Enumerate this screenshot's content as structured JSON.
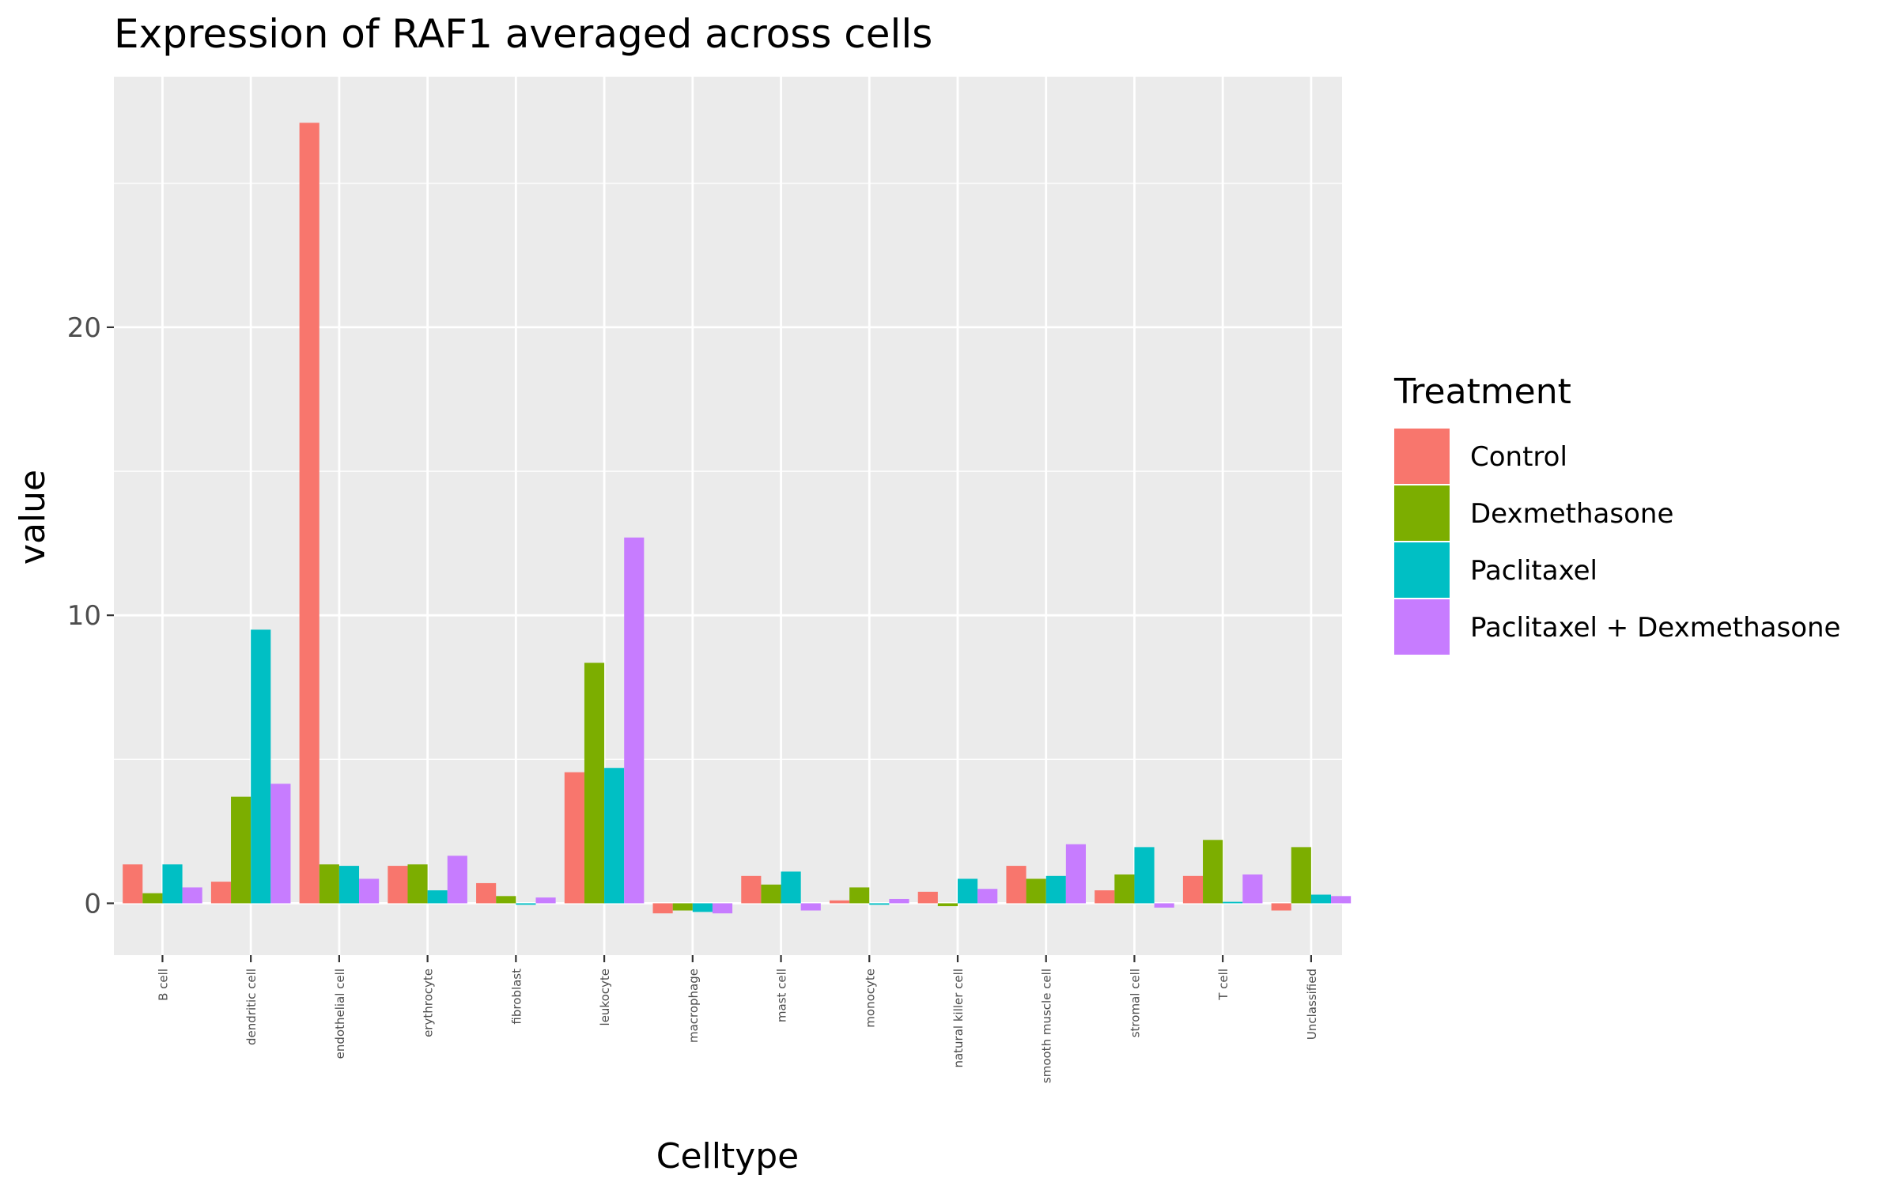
{
  "chart_data": {
    "type": "bar",
    "title": "Expression of RAF1 averaged across cells",
    "xlabel": "Celltype",
    "ylabel": "value",
    "ylim": [
      -1.8,
      28.7
    ],
    "yticks": [
      0,
      10,
      20
    ],
    "grid": true,
    "legend_position": "right",
    "legend_title": "Treatment",
    "categories": [
      "B cell",
      "dendritic cell",
      "endothelial cell",
      "erythrocyte",
      "fibroblast",
      "leukocyte",
      "macrophage",
      "mast cell",
      "monocyte",
      "natural killer cell",
      "smooth muscle cell",
      "stromal cell",
      "T cell",
      "Unclassified"
    ],
    "series": [
      {
        "name": "Control",
        "color": "#F8766D",
        "values": [
          1.35,
          0.75,
          27.1,
          1.3,
          0.7,
          4.55,
          -0.35,
          0.95,
          0.1,
          0.4,
          1.3,
          0.45,
          0.95,
          -0.25
        ]
      },
      {
        "name": "Dexmethasone",
        "color": "#7CAE00",
        "values": [
          0.35,
          3.7,
          1.35,
          1.35,
          0.25,
          8.35,
          -0.25,
          0.65,
          0.55,
          -0.1,
          0.85,
          1.0,
          2.2,
          1.95
        ]
      },
      {
        "name": "Paclitaxel",
        "color": "#00BFC4",
        "values": [
          1.35,
          9.5,
          1.3,
          0.45,
          -0.05,
          4.7,
          -0.3,
          1.1,
          -0.05,
          0.85,
          0.95,
          1.95,
          0.05,
          0.3
        ]
      },
      {
        "name": "Paclitaxel + Dexmethasone",
        "color": "#C77CFF",
        "values": [
          0.55,
          4.15,
          0.85,
          1.65,
          0.2,
          12.7,
          -0.35,
          -0.25,
          0.15,
          0.5,
          2.05,
          -0.15,
          1.0,
          0.25
        ]
      }
    ]
  },
  "colors": {
    "panel_background": "#EBEBEB",
    "grid_line": "#FFFFFF",
    "tick_text": "#4D4D4D",
    "tick_mark": "#333333"
  }
}
